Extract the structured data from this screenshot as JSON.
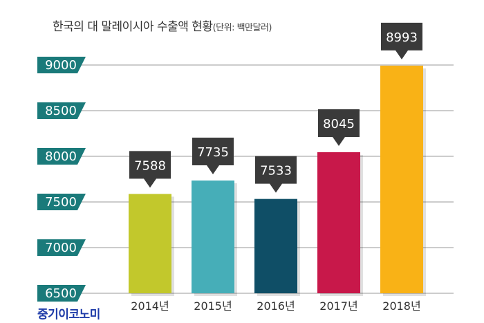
{
  "title": "한국의 대 말레이시아 수출액 현황",
  "unit": "(단위: 백만달러)",
  "watermark": "중기이코노미",
  "chart_data": {
    "type": "bar",
    "title": "한국의 대 말레이시아 수출액 현황",
    "subtitle": "(단위: 백만달러)",
    "xlabel": "",
    "ylabel": "",
    "categories": [
      "2014년",
      "2015년",
      "2016년",
      "2017년",
      "2018년"
    ],
    "values": [
      7588,
      7735,
      7533,
      8045,
      8993
    ],
    "value_labels": [
      "7588",
      "7735",
      "7533",
      "8045",
      "8993"
    ],
    "ylim": [
      6500,
      9000
    ],
    "yticks": [
      6500,
      7000,
      7500,
      8000,
      8500,
      9000
    ],
    "ytick_labels": [
      "6500",
      "7000",
      "7500",
      "8000",
      "8500",
      "9000"
    ],
    "grid": true,
    "legend": "none",
    "colors": [
      "#c2c82c",
      "#46aeb8",
      "#0f4e66",
      "#c8184a",
      "#f9b216"
    ],
    "tick_color": "#1a7a7a",
    "label_box_color": "#3a3a3a"
  }
}
